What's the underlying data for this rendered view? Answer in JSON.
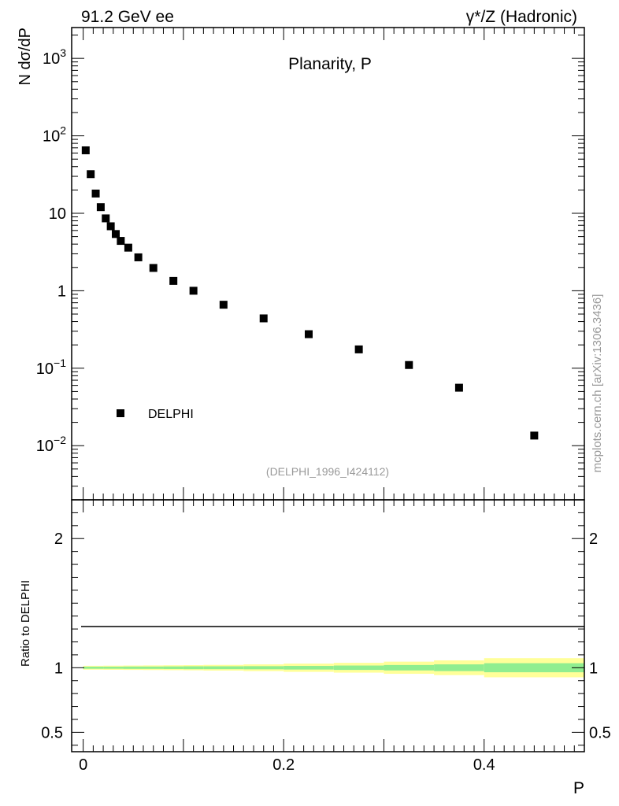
{
  "header": {
    "left": "91.2 GeV ee",
    "right": "γ*/Z (Hadronic)"
  },
  "side_label": "mcplots.cern.ch [arXiv:1306.3436]",
  "chart_data": {
    "type": "scatter",
    "title": "Planarity, P",
    "xlabel": "P",
    "ylabel": "N  dσ/dP",
    "ratio_ylabel": "Ratio to DELPHI",
    "analysis_id": "(DELPHI_1996_I424112)",
    "legend": {
      "entries": [
        "DELPHI"
      ],
      "placement": "lower-left"
    },
    "xlim": [
      -0.0115,
      0.5
    ],
    "ylim": [
      0.002,
      2500
    ],
    "yscale": "log",
    "x_ticks": [
      "0",
      "0.2",
      "0.4"
    ],
    "y_ticks": [
      "10^-2",
      "10^-1",
      "1",
      "10",
      "10^2",
      "10^3"
    ],
    "series": [
      {
        "name": "DELPHI",
        "marker": "square",
        "x": [
          0.0025,
          0.0075,
          0.0125,
          0.0175,
          0.0225,
          0.0275,
          0.0325,
          0.0375,
          0.045,
          0.055,
          0.07,
          0.09,
          0.11,
          0.14,
          0.18,
          0.225,
          0.275,
          0.325,
          0.375,
          0.45
        ],
        "y": [
          65,
          32,
          18,
          12,
          8.6,
          6.8,
          5.4,
          4.4,
          3.6,
          2.7,
          1.97,
          1.34,
          1.0,
          0.66,
          0.44,
          0.275,
          0.175,
          0.11,
          0.056,
          0.0135
        ]
      }
    ],
    "ratio": {
      "ylim": [
        0.35,
        2.3
      ],
      "y_ticks": [
        "0.5",
        "1",
        "2"
      ],
      "reference": 1,
      "bands": {
        "colors": {
          "inner": "#90ee90",
          "outer": "#ffff99"
        },
        "x_edges": [
          0.0,
          0.02,
          0.04,
          0.06,
          0.08,
          0.1,
          0.12,
          0.16,
          0.2,
          0.25,
          0.3,
          0.35,
          0.4,
          0.5
        ],
        "inner": [
          0.008,
          0.008,
          0.009,
          0.009,
          0.01,
          0.011,
          0.011,
          0.012,
          0.014,
          0.017,
          0.021,
          0.026,
          0.035
        ],
        "outer": [
          0.015,
          0.016,
          0.017,
          0.018,
          0.019,
          0.02,
          0.022,
          0.026,
          0.032,
          0.038,
          0.047,
          0.057,
          0.074
        ]
      }
    }
  }
}
